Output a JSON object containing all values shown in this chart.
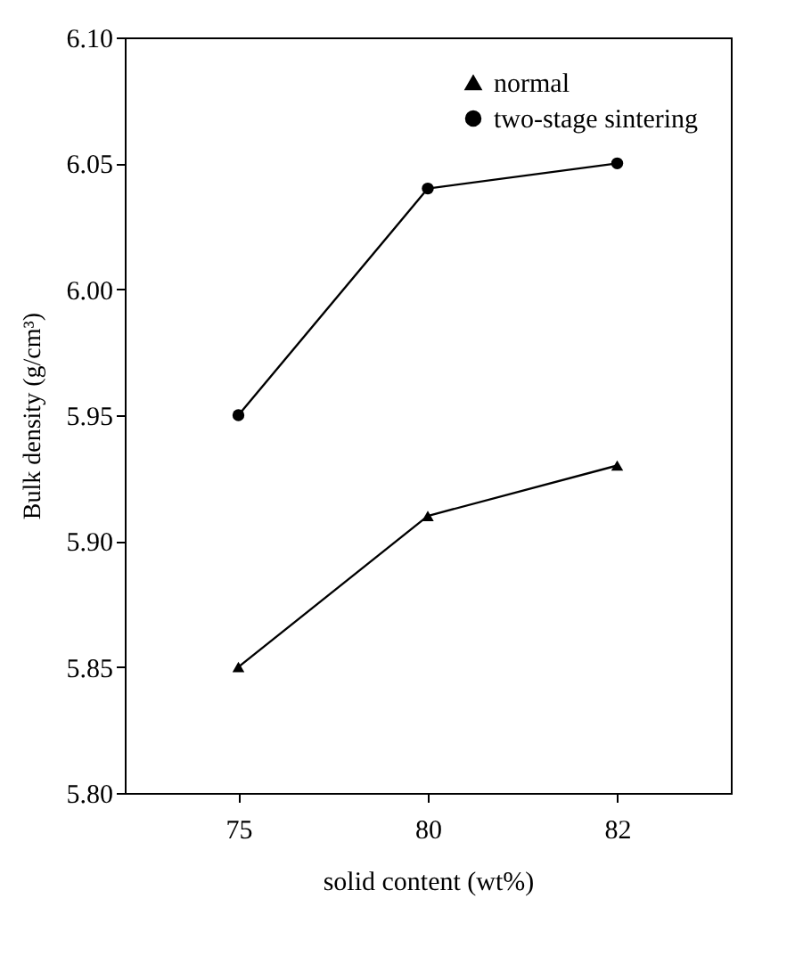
{
  "chart_data": {
    "type": "line",
    "xlabel": "solid content (wt%)",
    "ylabel": "Bulk density (g/cm³)",
    "categories": [
      "75",
      "80",
      "82"
    ],
    "series": [
      {
        "name": "normal",
        "color": "#000000",
        "marker": "triangle",
        "values": [
          5.85,
          5.91,
          5.93
        ]
      },
      {
        "name": "two-stage sintering",
        "color": "#000000",
        "marker": "circle",
        "values": [
          5.95,
          6.04,
          6.05
        ]
      }
    ],
    "ylim": [
      5.8,
      6.1
    ],
    "yticks": [
      {
        "value": 5.8,
        "label": "5.80"
      },
      {
        "value": 5.85,
        "label": "5.85"
      },
      {
        "value": 5.9,
        "label": "5.90"
      },
      {
        "value": 5.95,
        "label": "5.95"
      },
      {
        "value": 6.0,
        "label": "6.00"
      },
      {
        "value": 6.05,
        "label": "6.05"
      },
      {
        "value": 6.1,
        "label": "6.10"
      }
    ],
    "grid": false,
    "legend": "top right",
    "line_style": "solid"
  }
}
